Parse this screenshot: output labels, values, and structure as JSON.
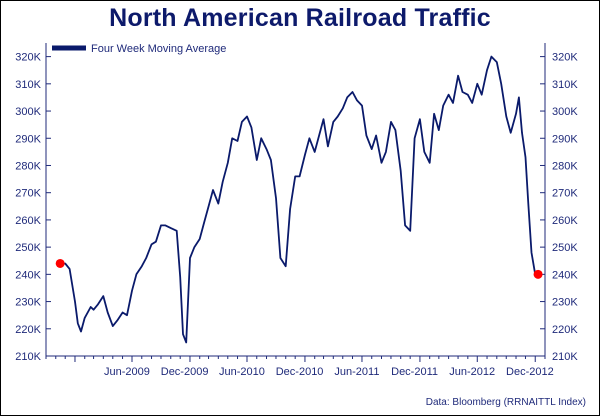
{
  "title": "North American Railroad Traffic",
  "source": "Data: Bloomberg (RRNAITTL Index)",
  "colors": {
    "line": "#0a1a6b",
    "marker": "#ff0000",
    "axis": "#1f2a7a",
    "title": "#0d1a6b"
  },
  "chart_data": {
    "type": "line",
    "title": "North American Railroad Traffic",
    "legend": {
      "entries": [
        "Four Week Moving Average"
      ],
      "placement": "top-left"
    },
    "grid": false,
    "ylim": [
      210,
      325
    ],
    "y_ticks": [
      210,
      220,
      230,
      240,
      250,
      260,
      270,
      280,
      290,
      300,
      310,
      320
    ],
    "y_tick_labels": [
      "210K",
      "220K",
      "230K",
      "240K",
      "250K",
      "260K",
      "270K",
      "280K",
      "290K",
      "300K",
      "310K",
      "320K"
    ],
    "y_axes": [
      "left",
      "right"
    ],
    "x_tick_labels": [
      "Jun-2009",
      "Dec-2009",
      "Jun-2010",
      "Dec-2010",
      "Jun-2011",
      "Dec-2011",
      "Jun-2012",
      "Dec-2012"
    ],
    "series": [
      {
        "name": "Four Week Moving Average",
        "x": [
          "2008-11-15",
          "2008-12-01",
          "2008-12-15",
          "2009-01-01",
          "2009-01-10",
          "2009-01-20",
          "2009-02-01",
          "2009-02-20",
          "2009-03-01",
          "2009-03-15",
          "2009-04-01",
          "2009-04-15",
          "2009-05-01",
          "2009-05-15",
          "2009-06-01",
          "2009-06-15",
          "2009-07-01",
          "2009-07-15",
          "2009-08-01",
          "2009-08-15",
          "2009-09-01",
          "2009-09-15",
          "2009-10-01",
          "2009-10-15",
          "2009-11-01",
          "2009-11-20",
          "2009-12-01",
          "2009-12-10",
          "2009-12-20",
          "2010-01-01",
          "2010-01-15",
          "2010-02-01",
          "2010-02-15",
          "2010-03-01",
          "2010-03-15",
          "2010-04-01",
          "2010-04-15",
          "2010-05-01",
          "2010-05-15",
          "2010-06-01",
          "2010-06-15",
          "2010-07-01",
          "2010-07-15",
          "2010-08-01",
          "2010-08-15",
          "2010-09-01",
          "2010-09-15",
          "2010-10-01",
          "2010-10-15",
          "2010-11-01",
          "2010-11-15",
          "2010-12-01",
          "2010-12-15",
          "2011-01-01",
          "2011-01-15",
          "2011-02-01",
          "2011-02-15",
          "2011-03-01",
          "2011-03-15",
          "2011-04-01",
          "2011-04-15",
          "2011-05-01",
          "2011-05-15",
          "2011-06-01",
          "2011-06-15",
          "2011-07-01",
          "2011-07-15",
          "2011-08-01",
          "2011-08-15",
          "2011-09-01",
          "2011-09-15",
          "2011-10-01",
          "2011-10-15",
          "2011-11-01",
          "2011-11-15",
          "2011-12-01",
          "2011-12-15",
          "2012-01-01",
          "2012-01-15",
          "2012-02-01",
          "2012-02-15",
          "2012-03-01",
          "2012-03-15",
          "2012-04-01",
          "2012-04-15",
          "2012-05-01",
          "2012-05-15",
          "2012-06-01",
          "2012-06-15",
          "2012-07-01",
          "2012-07-15",
          "2012-08-01",
          "2012-08-15",
          "2012-09-01",
          "2012-09-15",
          "2012-10-01",
          "2012-10-15",
          "2012-11-01",
          "2012-11-10",
          "2012-11-20",
          "2012-12-01",
          "2012-12-10",
          "2012-12-20",
          "2013-01-01",
          "2013-01-10"
        ],
        "values": [
          244,
          244,
          242,
          230,
          222,
          219,
          224,
          228,
          227,
          229,
          232,
          226,
          221,
          223,
          226,
          225,
          234,
          240,
          243,
          246,
          251,
          252,
          258,
          258,
          257,
          256,
          239,
          218,
          215,
          246,
          250,
          253,
          259,
          265,
          271,
          266,
          274,
          281,
          290,
          289,
          296,
          298,
          294,
          282,
          290,
          286,
          282,
          268,
          246,
          243,
          264,
          276,
          276,
          284,
          290,
          285,
          291,
          297,
          287,
          296,
          298,
          301,
          305,
          307,
          304,
          302,
          291,
          286,
          291,
          281,
          285,
          296,
          293,
          278,
          258,
          256,
          290,
          297,
          285,
          281,
          299,
          293,
          302,
          306,
          303,
          313,
          307,
          306,
          303,
          310,
          306,
          315,
          320,
          318,
          310,
          298,
          292,
          299,
          305,
          292,
          283,
          266,
          248,
          240,
          240
        ],
        "markers": [
          {
            "x": "2008-11-15",
            "y": 244
          },
          {
            "x": "2013-01-10",
            "y": 240
          }
        ]
      }
    ]
  }
}
